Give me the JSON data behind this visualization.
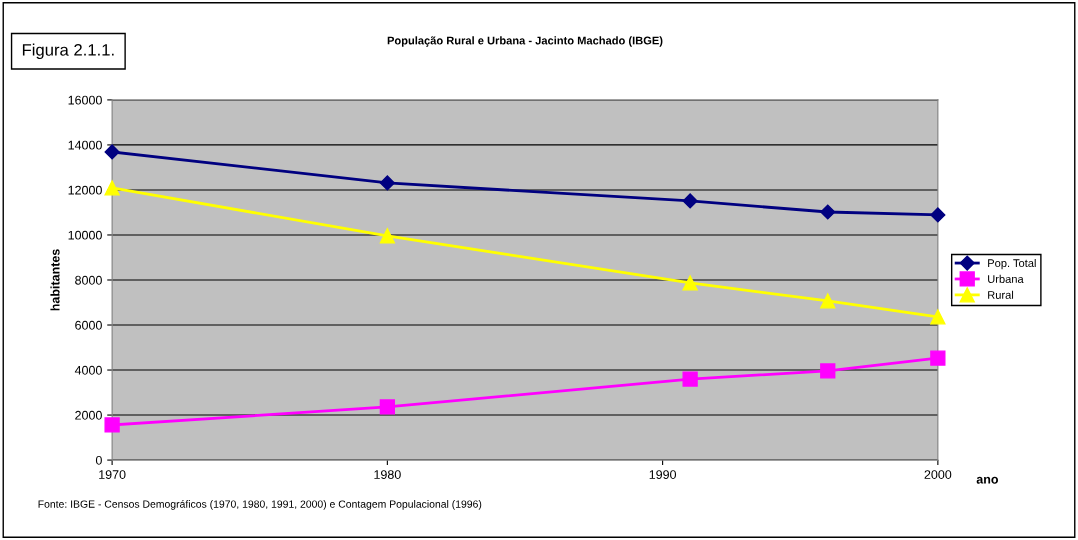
{
  "chart_data": {
    "type": "line",
    "title": "População Rural e Urbana - Jacinto Machado (IBGE)",
    "xlabel": "ano",
    "ylabel": "habitantes",
    "x": [
      1970,
      1980,
      1991,
      1996,
      2000
    ],
    "series": [
      {
        "name": "Pop. Total",
        "color": "#000080",
        "marker": "diamond",
        "values": [
          13690,
          12310,
          11510,
          11020,
          10890
        ]
      },
      {
        "name": "Urbana",
        "color": "#ff00ff",
        "marker": "square",
        "values": [
          1560,
          2360,
          3600,
          3960,
          4530
        ]
      },
      {
        "name": "Rural",
        "color": "#ffff00",
        "marker": "triangle",
        "values": [
          12090,
          9960,
          7870,
          7070,
          6360
        ]
      }
    ],
    "xlim": [
      1970,
      2000
    ],
    "xticks": [
      1970,
      1980,
      1990,
      2000
    ],
    "ylim": [
      0,
      16000
    ],
    "yticks": [
      0,
      2000,
      4000,
      6000,
      8000,
      10000,
      12000,
      14000,
      16000
    ],
    "grid": "y",
    "legend": "right",
    "line_style": "solid",
    "annotations": [
      "Figura 2.1.1.",
      "Fonte: IBGE - Censos Demográficos (1970, 1980, 1991, 2000) e Contagem Populacional (1996)"
    ]
  }
}
